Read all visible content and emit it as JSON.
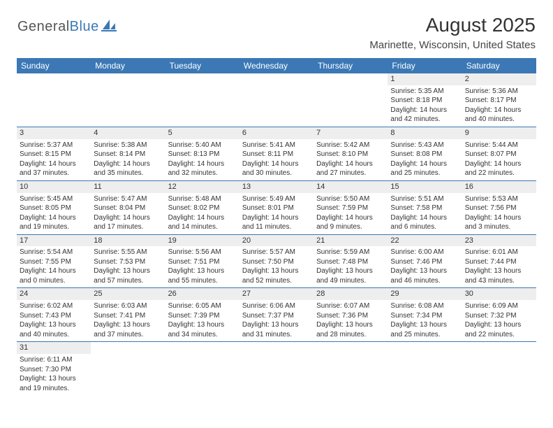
{
  "brand": {
    "part1": "General",
    "part2": "Blue"
  },
  "title": "August 2025",
  "location": "Marinette, Wisconsin, United States",
  "colors": {
    "accent": "#3b78b5",
    "background": "#ffffff",
    "daynum_bg": "#eeeeee",
    "text": "#333333"
  },
  "weekdays": [
    "Sunday",
    "Monday",
    "Tuesday",
    "Wednesday",
    "Thursday",
    "Friday",
    "Saturday"
  ],
  "weeks": [
    [
      null,
      null,
      null,
      null,
      null,
      {
        "n": "1",
        "sr": "Sunrise: 5:35 AM",
        "ss": "Sunset: 8:18 PM",
        "d1": "Daylight: 14 hours",
        "d2": "and 42 minutes."
      },
      {
        "n": "2",
        "sr": "Sunrise: 5:36 AM",
        "ss": "Sunset: 8:17 PM",
        "d1": "Daylight: 14 hours",
        "d2": "and 40 minutes."
      }
    ],
    [
      {
        "n": "3",
        "sr": "Sunrise: 5:37 AM",
        "ss": "Sunset: 8:15 PM",
        "d1": "Daylight: 14 hours",
        "d2": "and 37 minutes."
      },
      {
        "n": "4",
        "sr": "Sunrise: 5:38 AM",
        "ss": "Sunset: 8:14 PM",
        "d1": "Daylight: 14 hours",
        "d2": "and 35 minutes."
      },
      {
        "n": "5",
        "sr": "Sunrise: 5:40 AM",
        "ss": "Sunset: 8:13 PM",
        "d1": "Daylight: 14 hours",
        "d2": "and 32 minutes."
      },
      {
        "n": "6",
        "sr": "Sunrise: 5:41 AM",
        "ss": "Sunset: 8:11 PM",
        "d1": "Daylight: 14 hours",
        "d2": "and 30 minutes."
      },
      {
        "n": "7",
        "sr": "Sunrise: 5:42 AM",
        "ss": "Sunset: 8:10 PM",
        "d1": "Daylight: 14 hours",
        "d2": "and 27 minutes."
      },
      {
        "n": "8",
        "sr": "Sunrise: 5:43 AM",
        "ss": "Sunset: 8:08 PM",
        "d1": "Daylight: 14 hours",
        "d2": "and 25 minutes."
      },
      {
        "n": "9",
        "sr": "Sunrise: 5:44 AM",
        "ss": "Sunset: 8:07 PM",
        "d1": "Daylight: 14 hours",
        "d2": "and 22 minutes."
      }
    ],
    [
      {
        "n": "10",
        "sr": "Sunrise: 5:45 AM",
        "ss": "Sunset: 8:05 PM",
        "d1": "Daylight: 14 hours",
        "d2": "and 19 minutes."
      },
      {
        "n": "11",
        "sr": "Sunrise: 5:47 AM",
        "ss": "Sunset: 8:04 PM",
        "d1": "Daylight: 14 hours",
        "d2": "and 17 minutes."
      },
      {
        "n": "12",
        "sr": "Sunrise: 5:48 AM",
        "ss": "Sunset: 8:02 PM",
        "d1": "Daylight: 14 hours",
        "d2": "and 14 minutes."
      },
      {
        "n": "13",
        "sr": "Sunrise: 5:49 AM",
        "ss": "Sunset: 8:01 PM",
        "d1": "Daylight: 14 hours",
        "d2": "and 11 minutes."
      },
      {
        "n": "14",
        "sr": "Sunrise: 5:50 AM",
        "ss": "Sunset: 7:59 PM",
        "d1": "Daylight: 14 hours",
        "d2": "and 9 minutes."
      },
      {
        "n": "15",
        "sr": "Sunrise: 5:51 AM",
        "ss": "Sunset: 7:58 PM",
        "d1": "Daylight: 14 hours",
        "d2": "and 6 minutes."
      },
      {
        "n": "16",
        "sr": "Sunrise: 5:53 AM",
        "ss": "Sunset: 7:56 PM",
        "d1": "Daylight: 14 hours",
        "d2": "and 3 minutes."
      }
    ],
    [
      {
        "n": "17",
        "sr": "Sunrise: 5:54 AM",
        "ss": "Sunset: 7:55 PM",
        "d1": "Daylight: 14 hours",
        "d2": "and 0 minutes."
      },
      {
        "n": "18",
        "sr": "Sunrise: 5:55 AM",
        "ss": "Sunset: 7:53 PM",
        "d1": "Daylight: 13 hours",
        "d2": "and 57 minutes."
      },
      {
        "n": "19",
        "sr": "Sunrise: 5:56 AM",
        "ss": "Sunset: 7:51 PM",
        "d1": "Daylight: 13 hours",
        "d2": "and 55 minutes."
      },
      {
        "n": "20",
        "sr": "Sunrise: 5:57 AM",
        "ss": "Sunset: 7:50 PM",
        "d1": "Daylight: 13 hours",
        "d2": "and 52 minutes."
      },
      {
        "n": "21",
        "sr": "Sunrise: 5:59 AM",
        "ss": "Sunset: 7:48 PM",
        "d1": "Daylight: 13 hours",
        "d2": "and 49 minutes."
      },
      {
        "n": "22",
        "sr": "Sunrise: 6:00 AM",
        "ss": "Sunset: 7:46 PM",
        "d1": "Daylight: 13 hours",
        "d2": "and 46 minutes."
      },
      {
        "n": "23",
        "sr": "Sunrise: 6:01 AM",
        "ss": "Sunset: 7:44 PM",
        "d1": "Daylight: 13 hours",
        "d2": "and 43 minutes."
      }
    ],
    [
      {
        "n": "24",
        "sr": "Sunrise: 6:02 AM",
        "ss": "Sunset: 7:43 PM",
        "d1": "Daylight: 13 hours",
        "d2": "and 40 minutes."
      },
      {
        "n": "25",
        "sr": "Sunrise: 6:03 AM",
        "ss": "Sunset: 7:41 PM",
        "d1": "Daylight: 13 hours",
        "d2": "and 37 minutes."
      },
      {
        "n": "26",
        "sr": "Sunrise: 6:05 AM",
        "ss": "Sunset: 7:39 PM",
        "d1": "Daylight: 13 hours",
        "d2": "and 34 minutes."
      },
      {
        "n": "27",
        "sr": "Sunrise: 6:06 AM",
        "ss": "Sunset: 7:37 PM",
        "d1": "Daylight: 13 hours",
        "d2": "and 31 minutes."
      },
      {
        "n": "28",
        "sr": "Sunrise: 6:07 AM",
        "ss": "Sunset: 7:36 PM",
        "d1": "Daylight: 13 hours",
        "d2": "and 28 minutes."
      },
      {
        "n": "29",
        "sr": "Sunrise: 6:08 AM",
        "ss": "Sunset: 7:34 PM",
        "d1": "Daylight: 13 hours",
        "d2": "and 25 minutes."
      },
      {
        "n": "30",
        "sr": "Sunrise: 6:09 AM",
        "ss": "Sunset: 7:32 PM",
        "d1": "Daylight: 13 hours",
        "d2": "and 22 minutes."
      }
    ],
    [
      {
        "n": "31",
        "sr": "Sunrise: 6:11 AM",
        "ss": "Sunset: 7:30 PM",
        "d1": "Daylight: 13 hours",
        "d2": "and 19 minutes."
      },
      null,
      null,
      null,
      null,
      null,
      null
    ]
  ]
}
